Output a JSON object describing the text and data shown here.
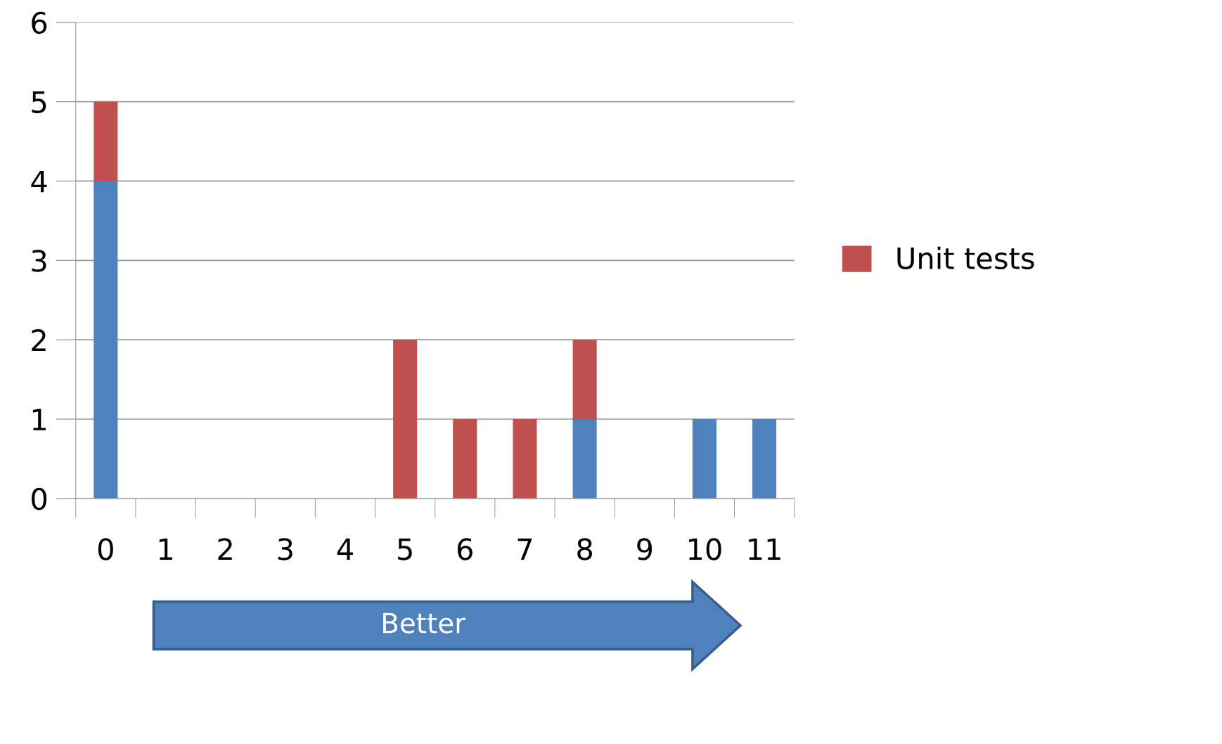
{
  "chart_data": {
    "type": "bar",
    "stacked": true,
    "categories": [
      "0",
      "1",
      "2",
      "3",
      "4",
      "5",
      "6",
      "7",
      "8",
      "9",
      "10",
      "11"
    ],
    "series": [
      {
        "color": "#4f81bd",
        "values": [
          4,
          0,
          0,
          0,
          0,
          0,
          0,
          0,
          1,
          0,
          1,
          1
        ]
      },
      {
        "name": "Unit tests",
        "color": "#c0504d",
        "values": [
          1,
          0,
          0,
          0,
          0,
          2,
          1,
          1,
          1,
          0,
          0,
          0
        ]
      }
    ],
    "ylim": [
      0,
      6
    ],
    "yticks": [
      0,
      1,
      2,
      3,
      4,
      5,
      6
    ],
    "grid": "y",
    "legend": "right",
    "annotations": [
      "Better"
    ]
  }
}
